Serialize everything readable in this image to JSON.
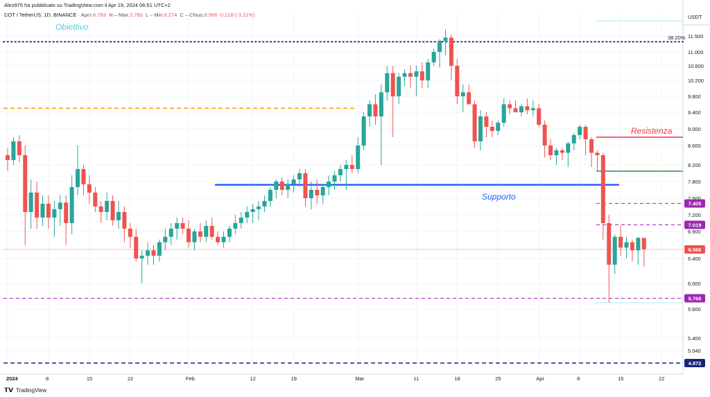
{
  "header": {
    "published": "Alex975 ha pubblicato su TradingView.com il Apr 19, 2024 06:51 UTC+2"
  },
  "legend": {
    "symbol": "DOT / TetherUS, 1D, BINANCE",
    "open_label": "Aper.",
    "open": "6.783",
    "high_label": "H",
    "high_prefix": "Max.",
    "high": "6.783",
    "low_label": "L",
    "low_prefix": "Min.",
    "low": "6.274",
    "close_label": "C",
    "close_prefix": "Chius.",
    "close": "6.566",
    "change": "-0.218 (-3.21%)"
  },
  "footer": {
    "brand": "TradingView"
  },
  "colors": {
    "up": "#26a69a",
    "down": "#ef5350",
    "support": "#2962ff",
    "resistance": "#f23645",
    "target_dots": "#1e3a8a",
    "fib_line": "#b2ebf2",
    "orange_line": "#ff9800",
    "purple": "#9c27b0",
    "green_line": "#388e3c",
    "obiettivo": "#4dd0e1",
    "current_line": "#f8bbd0",
    "navy_dash": "#1a237e"
  },
  "chart_data": {
    "type": "candlestick",
    "title": "DOT / TetherUS, 1D, BINANCE",
    "currency": "USDT",
    "y_ticks": [
      "11.500",
      "11.000",
      "10.600",
      "10.200",
      "9.800",
      "9.400",
      "9.000",
      "8.600",
      "8.200",
      "7.800",
      "7.500",
      "7.200",
      "6.900",
      "6.400",
      "6.000",
      "5.600",
      "5.400",
      "5.040"
    ],
    "x_ticks": [
      {
        "label": "2024",
        "day": 0
      },
      {
        "label": "8",
        "day": 7
      },
      {
        "label": "15",
        "day": 14
      },
      {
        "label": "22",
        "day": 21
      },
      {
        "label": "Feb",
        "day": 31
      },
      {
        "label": "12",
        "day": 42
      },
      {
        "label": "19",
        "day": 49
      },
      {
        "label": "Mar",
        "day": 60
      },
      {
        "label": "11",
        "day": 70
      },
      {
        "label": "18",
        "day": 77
      },
      {
        "label": "25",
        "day": 84
      },
      {
        "label": "Apr",
        "day": 91
      },
      {
        "label": "8",
        "day": 98
      },
      {
        "label": "15",
        "day": 105
      },
      {
        "label": "22",
        "day": 112
      }
    ],
    "candles": [
      [
        8.4,
        8.55,
        8.05,
        8.3
      ],
      [
        8.3,
        8.8,
        8.2,
        8.7
      ],
      [
        8.7,
        8.85,
        8.25,
        8.4
      ],
      [
        8.4,
        8.6,
        6.65,
        7.25
      ],
      [
        7.25,
        7.85,
        6.95,
        7.6
      ],
      [
        7.6,
        7.8,
        6.95,
        7.15
      ],
      [
        7.15,
        7.55,
        7.0,
        7.4
      ],
      [
        7.4,
        7.55,
        6.95,
        7.15
      ],
      [
        7.15,
        7.45,
        6.8,
        7.3
      ],
      [
        7.3,
        7.55,
        7.0,
        7.42
      ],
      [
        7.42,
        7.55,
        6.65,
        7.05
      ],
      [
        7.05,
        7.95,
        6.85,
        7.7
      ],
      [
        7.7,
        8.6,
        7.55,
        8.1
      ],
      [
        8.1,
        8.2,
        7.55,
        7.75
      ],
      [
        7.75,
        7.95,
        7.4,
        7.6
      ],
      [
        7.6,
        7.7,
        7.25,
        7.35
      ],
      [
        7.35,
        7.45,
        7.05,
        7.25
      ],
      [
        7.25,
        7.6,
        7.1,
        7.45
      ],
      [
        7.45,
        7.55,
        7.0,
        7.1
      ],
      [
        7.1,
        7.45,
        6.95,
        7.25
      ],
      [
        7.25,
        7.35,
        6.7,
        6.95
      ],
      [
        6.95,
        7.05,
        6.6,
        6.8
      ],
      [
        6.8,
        6.95,
        6.35,
        6.4
      ],
      [
        6.4,
        6.55,
        6.0,
        6.45
      ],
      [
        6.45,
        6.7,
        6.3,
        6.55
      ],
      [
        6.55,
        6.65,
        6.3,
        6.45
      ],
      [
        6.45,
        6.75,
        6.35,
        6.7
      ],
      [
        6.7,
        6.95,
        6.55,
        6.8
      ],
      [
        6.8,
        7.05,
        6.65,
        6.95
      ],
      [
        6.95,
        7.15,
        6.75,
        7.05
      ],
      [
        7.05,
        7.15,
        6.85,
        6.95
      ],
      [
        6.95,
        7.1,
        6.6,
        6.7
      ],
      [
        6.7,
        6.95,
        6.55,
        6.9
      ],
      [
        6.9,
        7.05,
        6.7,
        6.8
      ],
      [
        6.8,
        7.1,
        6.7,
        7.0
      ],
      [
        7.0,
        7.15,
        6.75,
        6.8
      ],
      [
        6.8,
        6.9,
        6.65,
        6.7
      ],
      [
        6.7,
        6.9,
        6.6,
        6.8
      ],
      [
        6.8,
        7.0,
        6.7,
        6.95
      ],
      [
        6.95,
        7.2,
        6.85,
        7.05
      ],
      [
        7.05,
        7.25,
        6.95,
        7.15
      ],
      [
        7.15,
        7.35,
        7.05,
        7.25
      ],
      [
        7.25,
        7.4,
        7.05,
        7.3
      ],
      [
        7.3,
        7.45,
        7.1,
        7.35
      ],
      [
        7.35,
        7.55,
        7.25,
        7.45
      ],
      [
        7.45,
        7.7,
        7.35,
        7.65
      ],
      [
        7.65,
        7.85,
        7.5,
        7.8
      ],
      [
        7.8,
        7.9,
        7.55,
        7.65
      ],
      [
        7.65,
        7.85,
        7.5,
        7.75
      ],
      [
        7.75,
        7.95,
        7.6,
        7.85
      ],
      [
        7.85,
        8.1,
        7.7,
        8.0
      ],
      [
        8.0,
        8.1,
        7.35,
        7.5
      ],
      [
        7.5,
        7.8,
        7.3,
        7.65
      ],
      [
        7.65,
        7.85,
        7.4,
        7.55
      ],
      [
        7.55,
        7.75,
        7.4,
        7.7
      ],
      [
        7.7,
        7.95,
        7.55,
        7.8
      ],
      [
        7.8,
        8.05,
        7.65,
        7.95
      ],
      [
        7.95,
        8.2,
        7.8,
        8.1
      ],
      [
        8.1,
        8.3,
        7.65,
        8.2
      ],
      [
        8.2,
        8.4,
        8.0,
        8.1
      ],
      [
        8.1,
        8.8,
        8.0,
        8.6
      ],
      [
        8.6,
        9.4,
        8.5,
        9.3
      ],
      [
        9.3,
        9.7,
        9.05,
        9.6
      ],
      [
        9.6,
        9.85,
        9.1,
        9.3
      ],
      [
        9.3,
        10.1,
        8.2,
        9.9
      ],
      [
        9.9,
        10.6,
        9.7,
        10.4
      ],
      [
        10.4,
        10.6,
        8.8,
        9.8
      ],
      [
        9.8,
        10.4,
        9.6,
        10.3
      ],
      [
        10.3,
        10.5,
        10.05,
        10.4
      ],
      [
        10.4,
        10.6,
        10.0,
        10.3
      ],
      [
        10.3,
        10.6,
        9.8,
        10.45
      ],
      [
        10.45,
        10.7,
        10.0,
        10.2
      ],
      [
        10.2,
        10.8,
        10.0,
        10.7
      ],
      [
        10.7,
        11.1,
        10.6,
        11.0
      ],
      [
        11.0,
        11.4,
        10.55,
        11.35
      ],
      [
        11.35,
        11.7,
        10.9,
        11.45
      ],
      [
        11.45,
        11.55,
        10.2,
        10.6
      ],
      [
        10.6,
        10.8,
        9.6,
        9.8
      ],
      [
        9.8,
        10.1,
        9.4,
        9.9
      ],
      [
        9.9,
        10.1,
        9.6,
        9.6
      ],
      [
        9.6,
        9.7,
        8.55,
        8.7
      ],
      [
        8.7,
        9.45,
        8.5,
        9.3
      ],
      [
        9.3,
        9.4,
        8.8,
        9.05
      ],
      [
        9.05,
        9.2,
        8.8,
        8.95
      ],
      [
        8.95,
        9.2,
        8.85,
        9.15
      ],
      [
        9.15,
        9.75,
        9.05,
        9.6
      ],
      [
        9.6,
        9.7,
        9.35,
        9.5
      ],
      [
        9.5,
        9.7,
        9.4,
        9.4
      ],
      [
        9.4,
        9.6,
        9.3,
        9.55
      ],
      [
        9.55,
        9.75,
        9.35,
        9.45
      ],
      [
        9.45,
        9.7,
        9.3,
        9.5
      ],
      [
        9.5,
        9.6,
        9.05,
        9.1
      ],
      [
        9.1,
        9.2,
        8.35,
        8.6
      ],
      [
        8.6,
        8.75,
        8.3,
        8.4
      ],
      [
        8.4,
        8.55,
        8.2,
        8.5
      ],
      [
        8.5,
        8.55,
        8.3,
        8.45
      ],
      [
        8.45,
        8.7,
        8.15,
        8.65
      ],
      [
        8.65,
        8.9,
        8.5,
        8.85
      ],
      [
        8.85,
        9.1,
        8.75,
        9.05
      ],
      [
        9.05,
        9.1,
        8.4,
        8.75
      ],
      [
        8.75,
        8.8,
        8.15,
        8.45
      ],
      [
        8.45,
        8.5,
        8.05,
        8.4
      ],
      [
        8.4,
        8.45,
        6.75,
        7.05
      ],
      [
        7.05,
        7.2,
        5.7,
        6.3
      ],
      [
        6.3,
        6.85,
        6.15,
        6.8
      ],
      [
        6.8,
        7.0,
        6.45,
        6.6
      ],
      [
        6.6,
        6.8,
        6.4,
        6.7
      ],
      [
        6.7,
        6.75,
        6.35,
        6.55
      ],
      [
        6.55,
        6.8,
        6.3,
        6.78
      ],
      [
        6.78,
        6.78,
        6.27,
        6.57
      ]
    ],
    "levels": [
      {
        "name": "obiettivo",
        "price": 11.32,
        "label": "Obiettivo"
      },
      {
        "name": "orange",
        "price": 9.5
      },
      {
        "name": "resistenza",
        "price": 8.8,
        "label": "Resistenza"
      },
      {
        "name": "green",
        "price": 8.05
      },
      {
        "name": "supporto",
        "price": 7.74,
        "label": "Supporto"
      },
      {
        "name": "p7405",
        "price": 7.405,
        "label": "7.405"
      },
      {
        "name": "p7019",
        "price": 7.019,
        "label": "7.019"
      },
      {
        "name": "current",
        "price": 6.566,
        "label": "6.566"
      },
      {
        "name": "p5768",
        "price": 5.768,
        "label": "5.768"
      },
      {
        "name": "p4872",
        "price": 4.872,
        "label": "4.872"
      }
    ],
    "fib_label": "38.20%"
  }
}
